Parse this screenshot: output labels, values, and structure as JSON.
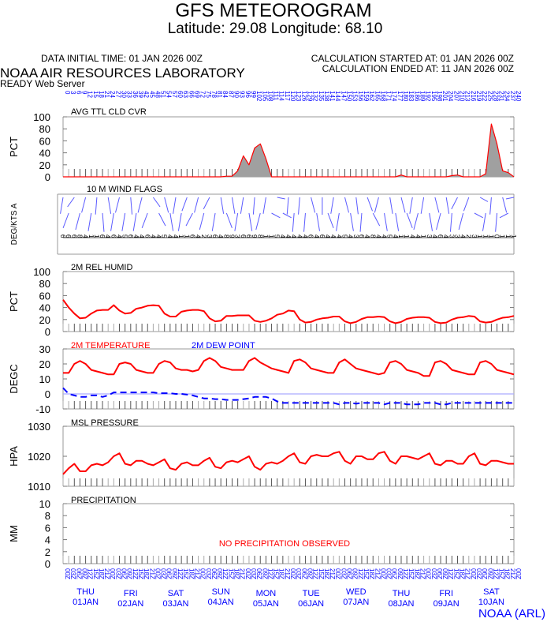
{
  "header": {
    "title": "GFS METEOROGRAM",
    "location": "Latitude: 29.08 Longitude:  68.10",
    "data_initial": "DATA INITIAL TIME: 01 JAN 2026 00Z",
    "calc_started": "CALCULATION STARTED AT: 01 JAN 2026 00Z",
    "calc_ended": "CALCULATION ENDED AT: 11 JAN 2026 00Z",
    "org": "NOAA AIR RESOURCES LABORATORY",
    "server": "READY Web Server",
    "credit": "NOAA (ARL)"
  },
  "colors": {
    "red": "#ff0000",
    "blue": "#0000ff",
    "wind": "#5a5aff",
    "gray": "#a0a0a0"
  },
  "days": [
    {
      "dow": "THU",
      "date": "01JAN"
    },
    {
      "dow": "FRI",
      "date": "02JAN"
    },
    {
      "dow": "SAT",
      "date": "03JAN"
    },
    {
      "dow": "SUN",
      "date": "04JAN"
    },
    {
      "dow": "MON",
      "date": "05JAN"
    },
    {
      "dow": "TUE",
      "date": "06JAN"
    },
    {
      "dow": "WED",
      "date": "07JAN"
    },
    {
      "dow": "THU",
      "date": "08JAN"
    },
    {
      "dow": "FRI",
      "date": "09JAN"
    },
    {
      "dow": "SAT",
      "date": "10JAN"
    }
  ],
  "chart_data": [
    {
      "id": "cloud",
      "type": "area",
      "title": "AVG TTL CLD CVR",
      "ylabel": "PCT",
      "ylim": [
        0,
        100
      ],
      "yticks": [
        "0",
        "20",
        "40",
        "60",
        "80",
        "100"
      ],
      "x_forecast_hours_step": 3,
      "values": [
        0,
        0,
        0,
        0,
        0,
        0,
        0,
        0,
        0,
        0,
        0,
        0,
        0,
        0,
        0,
        0,
        0,
        0,
        0,
        0,
        0,
        0,
        0,
        0,
        0,
        0,
        0,
        0,
        0,
        1,
        1,
        10,
        35,
        20,
        48,
        55,
        30,
        0,
        0,
        0,
        0,
        0,
        0,
        0,
        0,
        0,
        0,
        0,
        0,
        0,
        0,
        0,
        0,
        0,
        0,
        0,
        0,
        0,
        0,
        0,
        3,
        0,
        0,
        0,
        0,
        0,
        0,
        0,
        0,
        2,
        3,
        0,
        0,
        0,
        0,
        5,
        88,
        55,
        10,
        7,
        0
      ]
    },
    {
      "id": "wind",
      "type": "barbs",
      "title": "10 M  WIND FLAGS",
      "ylabel": "DEG/KTS A",
      "directions": [
        340,
        320,
        300,
        330,
        210,
        200,
        190,
        170,
        160,
        200,
        210,
        200,
        10,
        340,
        330,
        320,
        60,
        50,
        30,
        20,
        200,
        200,
        320,
        310,
        330,
        330,
        310,
        340,
        20,
        40,
        160,
        200,
        200,
        20,
        350,
        330,
        340,
        80,
        90,
        100,
        350,
        350,
        350,
        350,
        30,
        20,
        0,
        40,
        200,
        200,
        30,
        20,
        15,
        350,
        140,
        130,
        330,
        20,
        20,
        20,
        30,
        40,
        200,
        210,
        340,
        160,
        150,
        330,
        20,
        350,
        310,
        330,
        320,
        100,
        100,
        200,
        190,
        350,
        30,
        260,
        270
      ],
      "speeds": [
        6,
        6,
        6,
        8,
        4,
        1,
        1,
        6,
        4,
        6,
        4,
        5,
        6,
        4,
        4,
        6,
        4,
        4,
        5,
        4,
        4,
        1,
        1,
        6,
        4,
        2,
        3,
        6,
        4,
        8,
        9,
        3,
        6,
        6,
        9,
        8,
        1,
        1,
        5,
        4,
        4,
        4,
        4,
        4,
        6,
        4,
        6,
        4,
        4,
        4,
        5,
        4,
        3,
        6,
        4,
        8,
        4,
        4,
        5,
        4,
        1,
        1,
        4,
        4,
        1,
        3,
        4,
        6,
        4,
        3,
        3,
        4,
        2,
        3,
        1,
        1,
        1,
        0,
        1,
        1,
        1
      ]
    },
    {
      "id": "rh",
      "type": "line",
      "title": "2M REL HUMID",
      "ylabel": "PCT",
      "ylim": [
        0,
        100
      ],
      "yticks": [
        "0",
        "20",
        "40",
        "60",
        "80",
        "100"
      ],
      "values": [
        53,
        40,
        30,
        22,
        23,
        30,
        35,
        36,
        36,
        44,
        35,
        30,
        31,
        38,
        40,
        43,
        44,
        43,
        30,
        25,
        25,
        33,
        35,
        36,
        36,
        34,
        22,
        17,
        18,
        26,
        26,
        27,
        27,
        27,
        18,
        16,
        18,
        22,
        28,
        30,
        35,
        34,
        20,
        15,
        16,
        20,
        22,
        23,
        25,
        25,
        17,
        14,
        16,
        21,
        24,
        24,
        25,
        24,
        17,
        14,
        16,
        21,
        23,
        24,
        24,
        23,
        16,
        14,
        15,
        20,
        23,
        24,
        26,
        25,
        17,
        15,
        16,
        20,
        23,
        24,
        26
      ]
    },
    {
      "id": "temp",
      "type": "line",
      "title": "2M TEMPERATURE",
      "title2": "2M   DEW POINT",
      "ylabel": "DEGC",
      "ylim": [
        -10,
        30
      ],
      "yticks": [
        "-10",
        "0",
        "10",
        "20",
        "30"
      ],
      "series": [
        {
          "name": "2M TEMPERATURE",
          "values": [
            14,
            14,
            20,
            22,
            20,
            16,
            15,
            14,
            13,
            13,
            20,
            21,
            20,
            16,
            15,
            14,
            14,
            20,
            22,
            21,
            17,
            16,
            16,
            15,
            16,
            22,
            24,
            22,
            18,
            17,
            16,
            16,
            16,
            22,
            24,
            21,
            19,
            17,
            16,
            15,
            14,
            22,
            23,
            21,
            17,
            16,
            15,
            14,
            14,
            21,
            23,
            20,
            17,
            16,
            15,
            14,
            13,
            14,
            21,
            22,
            20,
            16,
            15,
            14,
            12,
            12,
            21,
            22,
            20,
            16,
            15,
            14,
            13,
            13,
            21,
            22,
            20,
            16,
            15,
            14,
            13
          ]
        },
        {
          "name": "2M DEW POINT",
          "values": [
            4,
            0,
            -1,
            -2,
            -2,
            -1,
            -1,
            -2,
            -1,
            1,
            1,
            1,
            1,
            1,
            1,
            1,
            1,
            0.5,
            0.5,
            0.5,
            0,
            0,
            -0.5,
            -1,
            -2,
            -3,
            -3,
            -3.5,
            -3.5,
            -4,
            -4,
            -4,
            -3.5,
            -3,
            -2,
            -2,
            -2,
            -3,
            -5,
            -6,
            -6,
            -6,
            -6,
            -6,
            -6,
            -6,
            -6,
            -6,
            -6,
            -7,
            -6,
            -6,
            -6.5,
            -6,
            -6,
            -6,
            -6,
            -7,
            -6,
            -6,
            -6,
            -7,
            -7,
            -7,
            -6,
            -6,
            -6,
            -7,
            -7,
            -6,
            -6,
            -6,
            -6,
            -6,
            -6,
            -6,
            -6,
            -6,
            -6,
            -6,
            -6
          ]
        }
      ]
    },
    {
      "id": "pres",
      "type": "line",
      "title": "MSL PRESSURE",
      "ylabel": "HPA",
      "ylim": [
        1010,
        1030
      ],
      "yticks": [
        "1010",
        "1020",
        "1030"
      ],
      "values": [
        1014,
        1016,
        1017.5,
        1015,
        1015,
        1017,
        1017.5,
        1017,
        1018,
        1020,
        1021,
        1017.5,
        1017,
        1018.5,
        1018.5,
        1017.5,
        1017,
        1018,
        1019,
        1016,
        1015.5,
        1017.5,
        1018,
        1017,
        1017,
        1018.5,
        1019.5,
        1016.5,
        1016,
        1018,
        1018.5,
        1018,
        1019,
        1020,
        1016.5,
        1015.5,
        1017.5,
        1018,
        1017.5,
        1018.5,
        1020,
        1021,
        1018,
        1017.5,
        1020,
        1020.5,
        1020,
        1020,
        1021,
        1021.5,
        1018.5,
        1017.5,
        1020,
        1020,
        1019,
        1019,
        1021,
        1021.5,
        1018.5,
        1017.5,
        1020,
        1020,
        1019.5,
        1019,
        1020,
        1021,
        1017.5,
        1017,
        1018.5,
        1018.5,
        1017.5,
        1017.5,
        1020,
        1021,
        1017.5,
        1017,
        1018.5,
        1018.5,
        1018,
        1017.5,
        1017.5
      ]
    },
    {
      "id": "precip",
      "type": "line",
      "title": "PRECIPITATION",
      "ylabel": "MM",
      "ylim": [
        0,
        10
      ],
      "yticks": [
        "0",
        "2",
        "4",
        "6",
        "8",
        "10"
      ],
      "note": "NO PRECIPITATION OBSERVED",
      "values": []
    }
  ]
}
